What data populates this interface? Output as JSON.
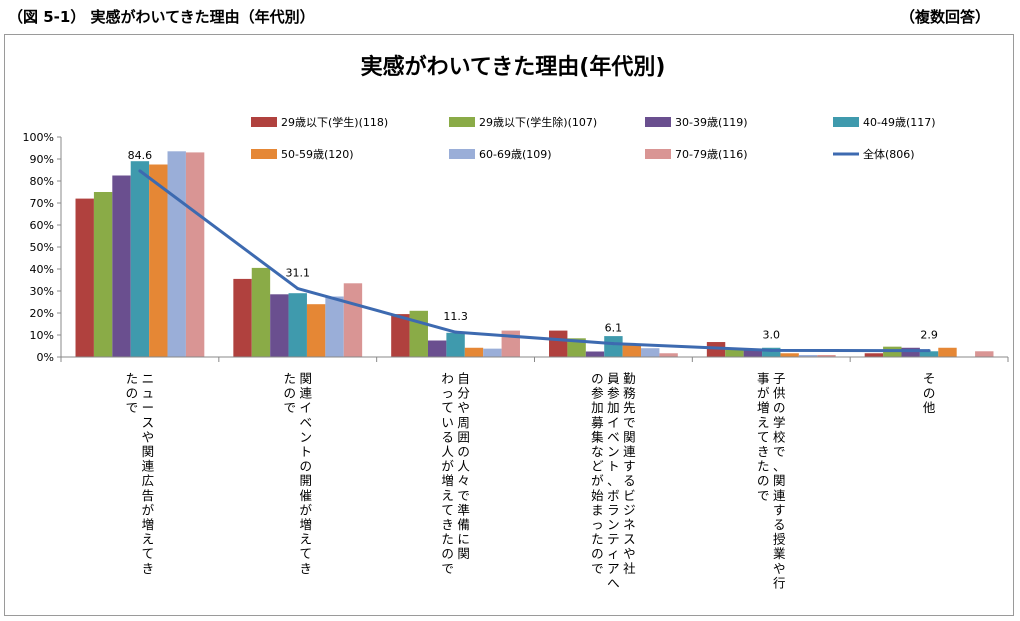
{
  "figure": {
    "caption": "（図 5-1）  実感がわいてきた理由（年代別）",
    "answer_type": "（複数回答）"
  },
  "colors": {
    "series": [
      "#b0413e",
      "#8aab47",
      "#6a4f8f",
      "#3f9aad",
      "#e58735",
      "#9aaed8",
      "#d99594"
    ],
    "total_line": "#3d6ab0",
    "frame": "#9a9a9a"
  },
  "chart_data": {
    "type": "bar",
    "title": "実感がわいてきた理由(年代別)",
    "categories": [
      [
        "ニュースや関連広告が増えてき",
        "たので"
      ],
      [
        "関連イベントの開催が増えてき",
        "たので"
      ],
      [
        "自分や周囲の人々で準備に関",
        "わっている人が増えてきたので"
      ],
      [
        "勤務先で関連するビジネスや社",
        "員参加イベント、ボランティアへ",
        "の参加募集などが始まったので"
      ],
      [
        "子供の学校で、関連する授業や行",
        "事が増えてきたので"
      ],
      [
        "その他"
      ]
    ],
    "series": [
      {
        "name": "29歳以下(学生)(118)",
        "values": [
          72,
          35.5,
          19.5,
          12,
          6.8,
          1.7
        ]
      },
      {
        "name": "29歳以下(学生除)(107)",
        "values": [
          75,
          40.5,
          21,
          8.5,
          3.5,
          4.7
        ]
      },
      {
        "name": "30-39歳(119)",
        "values": [
          82.5,
          28.5,
          7.5,
          2.5,
          3.5,
          4.2
        ]
      },
      {
        "name": "40-49歳(117)",
        "values": [
          89,
          29,
          11,
          9.5,
          4.2,
          2.6
        ]
      },
      {
        "name": "50-59歳(120)",
        "values": [
          87.5,
          24,
          4.2,
          5.5,
          1.7,
          4.2
        ]
      },
      {
        "name": "60-69歳(109)",
        "values": [
          93.5,
          27.5,
          3.8,
          4,
          0.9,
          0
        ]
      },
      {
        "name": "70-79歳(116)",
        "values": [
          93,
          33.5,
          12,
          1.7,
          0.9,
          2.6
        ]
      }
    ],
    "line": {
      "name": "全体(806)",
      "values": [
        84.6,
        31.1,
        11.3,
        6.1,
        3.0,
        2.9
      ]
    },
    "data_labels": [
      "84.6",
      "31.1",
      "11.3",
      "6.1",
      "3.0",
      "2.9"
    ],
    "y_ticks": [
      "0%",
      "10%",
      "20%",
      "30%",
      "40%",
      "50%",
      "60%",
      "70%",
      "80%",
      "90%",
      "100%"
    ],
    "ylim": [
      0,
      100
    ],
    "grid": false,
    "legend_position": "top"
  }
}
